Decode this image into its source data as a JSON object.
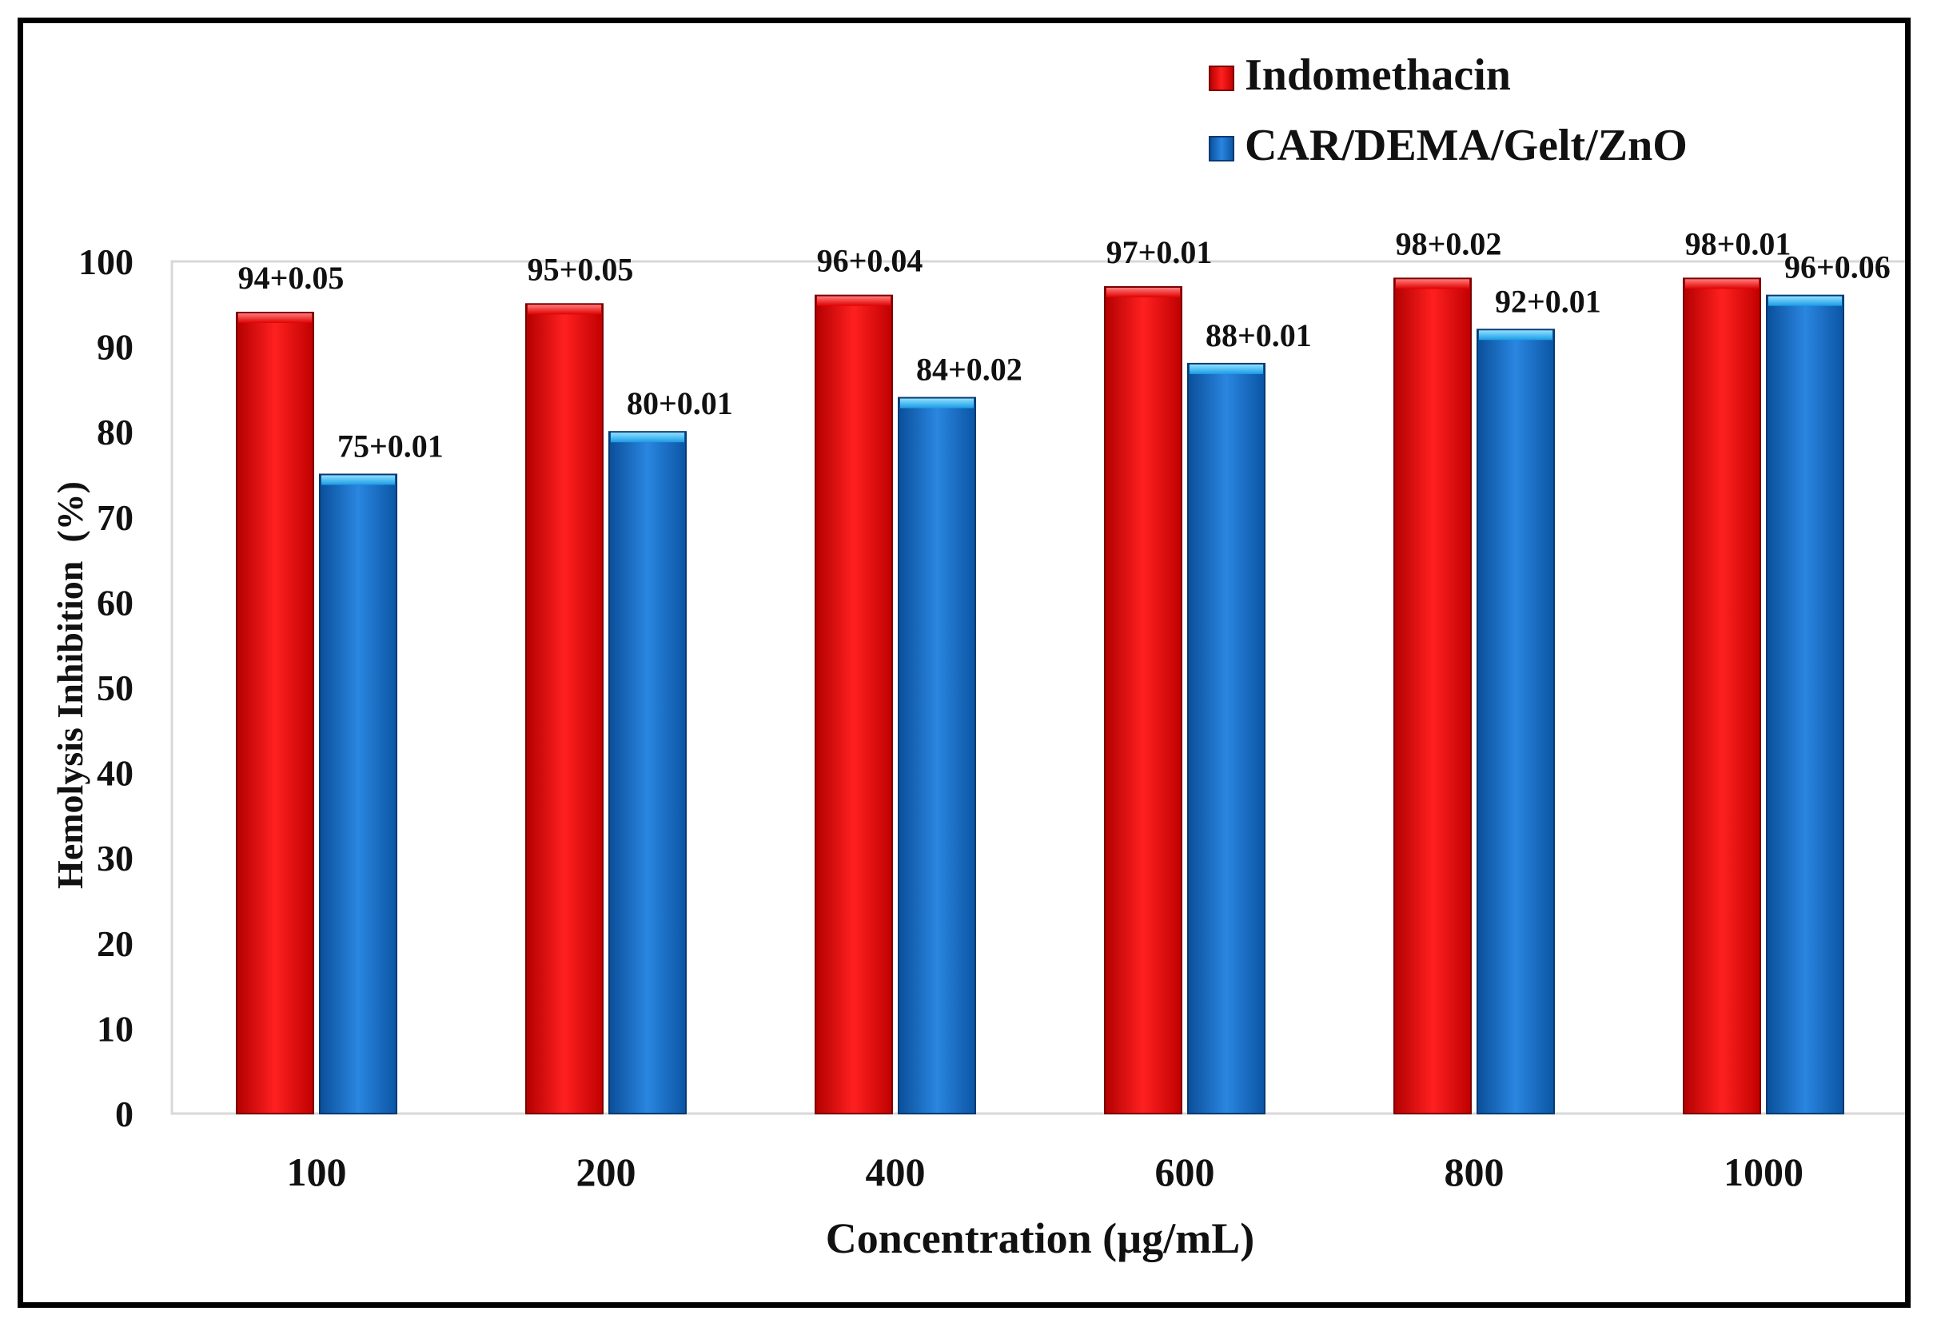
{
  "chart_data": {
    "type": "bar",
    "title": "",
    "xlabel": "Concentration (µg/mL)",
    "ylabel": "Hemolysis Inhibition  (%)",
    "ylim": [
      0,
      100
    ],
    "yticks": [
      "0",
      "10",
      "20",
      "30",
      "40",
      "50",
      "60",
      "70",
      "80",
      "90",
      "100"
    ],
    "categories": [
      "100",
      "200",
      "400",
      "600",
      "800",
      "1000"
    ],
    "grid": false,
    "legend": "top-right",
    "series": [
      {
        "name": "Indomethacin",
        "color": "#ee1111",
        "values": [
          94,
          95,
          96,
          97,
          98,
          98
        ],
        "labels": [
          "94+0.05",
          "95+0.05",
          "96+0.04",
          "97+0.01",
          "98+0.02",
          "98+0.01"
        ]
      },
      {
        "name": "CAR/DEMA/Gelt/ZnO",
        "color": "#1a6fc8",
        "values": [
          75,
          80,
          84,
          88,
          92,
          96
        ],
        "labels": [
          "75+0.01",
          "80+0.01",
          "84+0.02",
          "88+0.01",
          "92+0.01",
          "96+0.06"
        ]
      }
    ]
  }
}
